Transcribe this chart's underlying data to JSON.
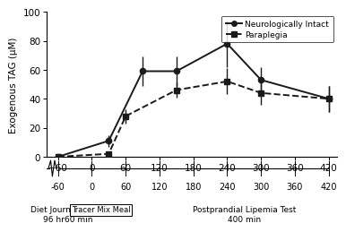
{
  "ni_x": [
    -60,
    30,
    90,
    150,
    240,
    300,
    420
  ],
  "ni_y": [
    0,
    11,
    59,
    59,
    78,
    53,
    40
  ],
  "ni_yerr": [
    0,
    4,
    10,
    10,
    16,
    9,
    9
  ],
  "para_x": [
    -60,
    30,
    60,
    150,
    240,
    300,
    420
  ],
  "para_y": [
    0,
    2,
    28,
    46,
    52,
    44,
    40
  ],
  "para_yerr": [
    0,
    1,
    5,
    5,
    9,
    8,
    9
  ],
  "ylabel": "Exogenous TAG (μM)",
  "xlim": [
    -80,
    435
  ],
  "ylim": [
    0,
    100
  ],
  "xticks": [
    -60,
    0,
    60,
    120,
    180,
    240,
    300,
    360,
    420
  ],
  "yticks": [
    0,
    20,
    40,
    60,
    80,
    100
  ],
  "legend_ni": "Neurologically Intact",
  "legend_para": "Paraplegia",
  "label_diet_journal": "Diet Journal\n96 hr",
  "label_rest": "Rest\n60 min",
  "label_tracer": "Tracer Mix Meal",
  "label_postprandial": "Postprandial Lipemia Test\n400 min",
  "line_color": "#1a1a1a"
}
